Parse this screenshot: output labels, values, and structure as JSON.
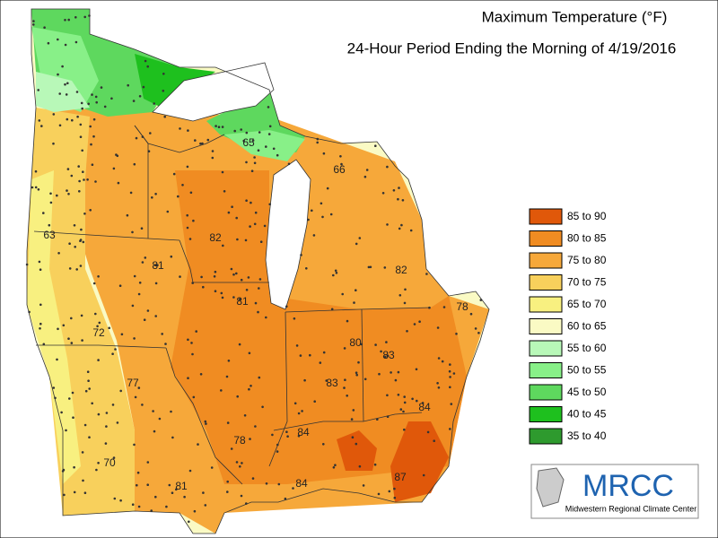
{
  "header": {
    "title": "Maximum Temperature (°F)",
    "subtitle": "24-Hour Period Ending the Morning of 4/19/2016"
  },
  "legend": [
    {
      "label": "85 to 90",
      "color": "#e0580a"
    },
    {
      "label": "80 to 85",
      "color": "#f08c22"
    },
    {
      "label": "75 to 80",
      "color": "#f6a83a"
    },
    {
      "label": "70 to 75",
      "color": "#f8d05c"
    },
    {
      "label": "65 to 70",
      "color": "#f8f080"
    },
    {
      "label": "60 to 65",
      "color": "#fafac4"
    },
    {
      "label": "55 to 60",
      "color": "#b8f8b8"
    },
    {
      "label": "50 to 55",
      "color": "#88f088"
    },
    {
      "label": "45 to 50",
      "color": "#5ed85e"
    },
    {
      "label": "40 to 45",
      "color": "#1ec01e"
    },
    {
      "label": "35 to 40",
      "color": "#2e9a2e"
    }
  ],
  "station_labels": [
    "65",
    "66",
    "63",
    "82",
    "81",
    "82",
    "81",
    "78",
    "72",
    "80",
    "83",
    "77",
    "83",
    "84",
    "84",
    "78",
    "70",
    "84",
    "87",
    "81"
  ],
  "logo": {
    "name": "MRCC",
    "caption": "Midwestern Regional Climate Center"
  }
}
